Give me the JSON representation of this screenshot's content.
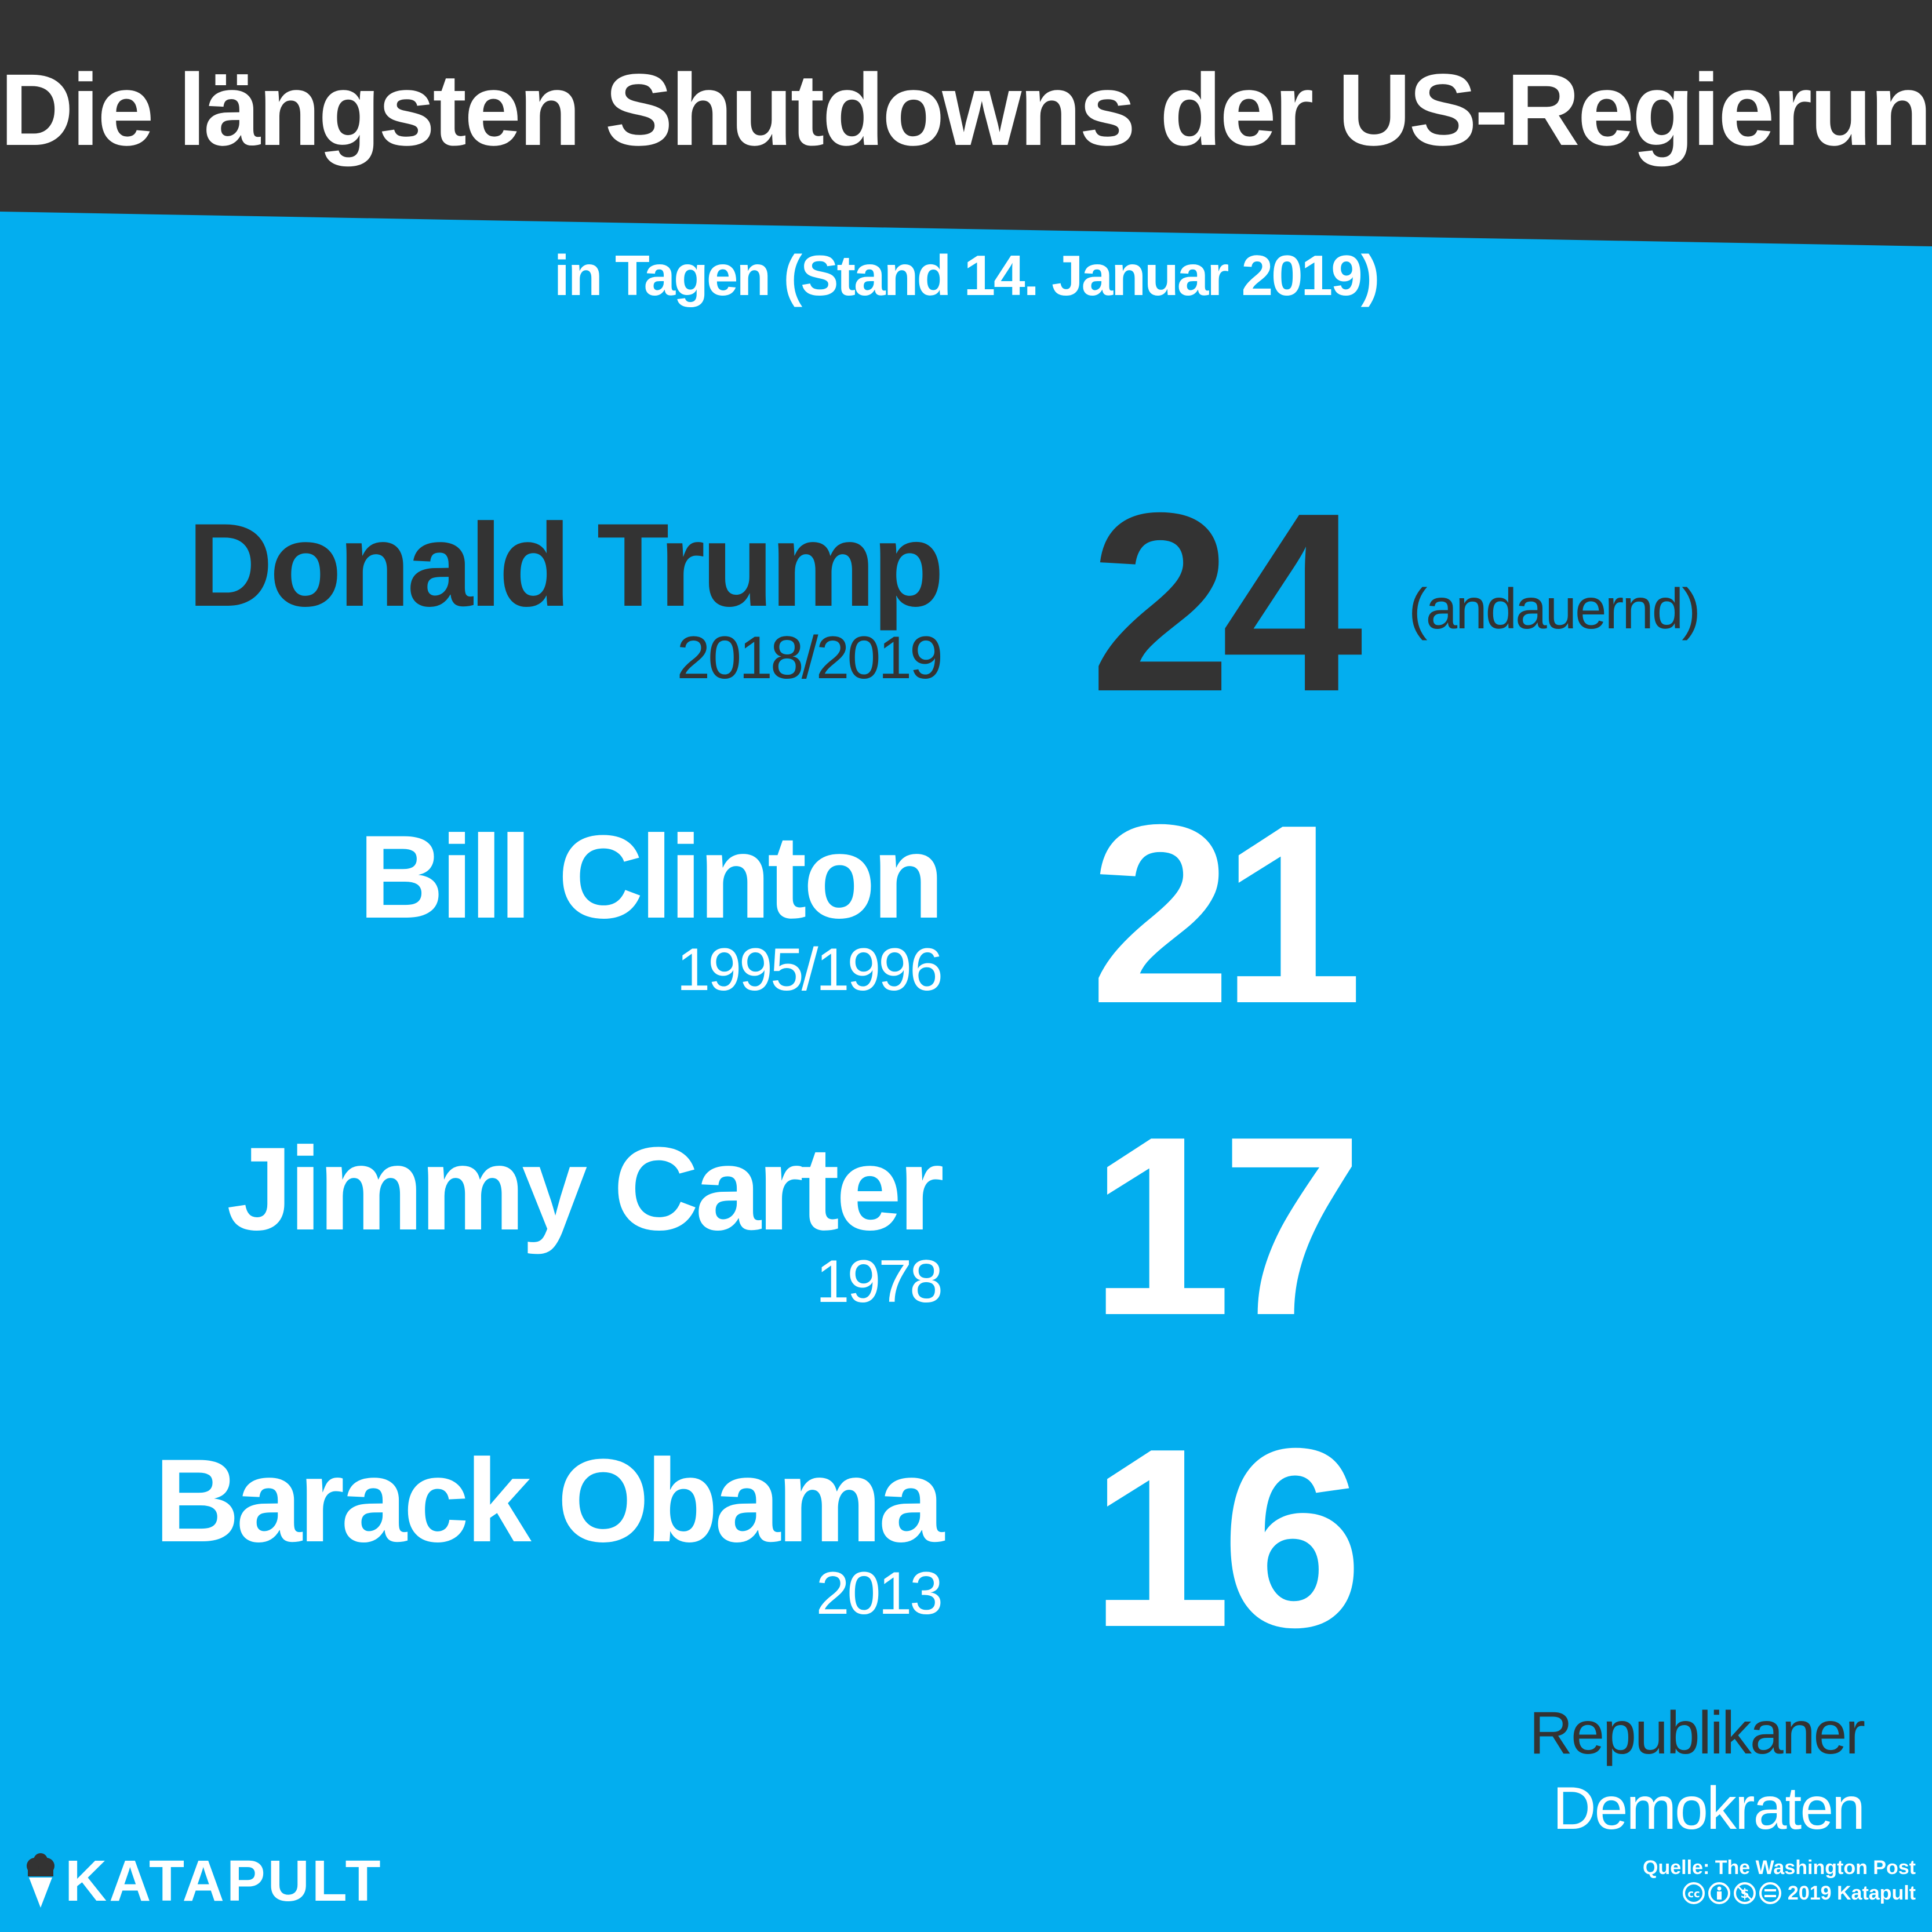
{
  "chart_data": {
    "type": "table",
    "title": "Die längsten Shutdowns der US-Regierung",
    "subtitle": "in Tagen (Stand 14. Januar 2019)",
    "categories": [
      "Donald Trump",
      "Bill Clinton",
      "Jimmy Carter",
      "Barack Obama"
    ],
    "years": [
      "2018/2019",
      "1995/1996",
      "1978",
      "2013"
    ],
    "values": [
      24,
      21,
      17,
      16
    ],
    "notes": [
      "(andauernd)",
      "",
      "",
      ""
    ],
    "parties": [
      "Republikaner",
      "Demokraten",
      "Demokraten",
      "Demokraten"
    ],
    "legend": {
      "placement": "bottom-right",
      "entries": [
        {
          "label": "Republikaner",
          "color": "#333333"
        },
        {
          "label": "Demokraten",
          "color": "#ffffff"
        }
      ]
    }
  },
  "colors": {
    "background": "#03aeef",
    "banner": "#333333",
    "republican": "#333333",
    "democrat": "#ffffff"
  },
  "brand": {
    "name": "KATAPULT",
    "icon": "katapult-logo-icon"
  },
  "footer": {
    "source": "Quelle: The Washington Post",
    "license_icons": [
      "cc-icon",
      "by-icon",
      "nc-icon",
      "nd-icon"
    ],
    "copyright": "2019 Katapult"
  }
}
